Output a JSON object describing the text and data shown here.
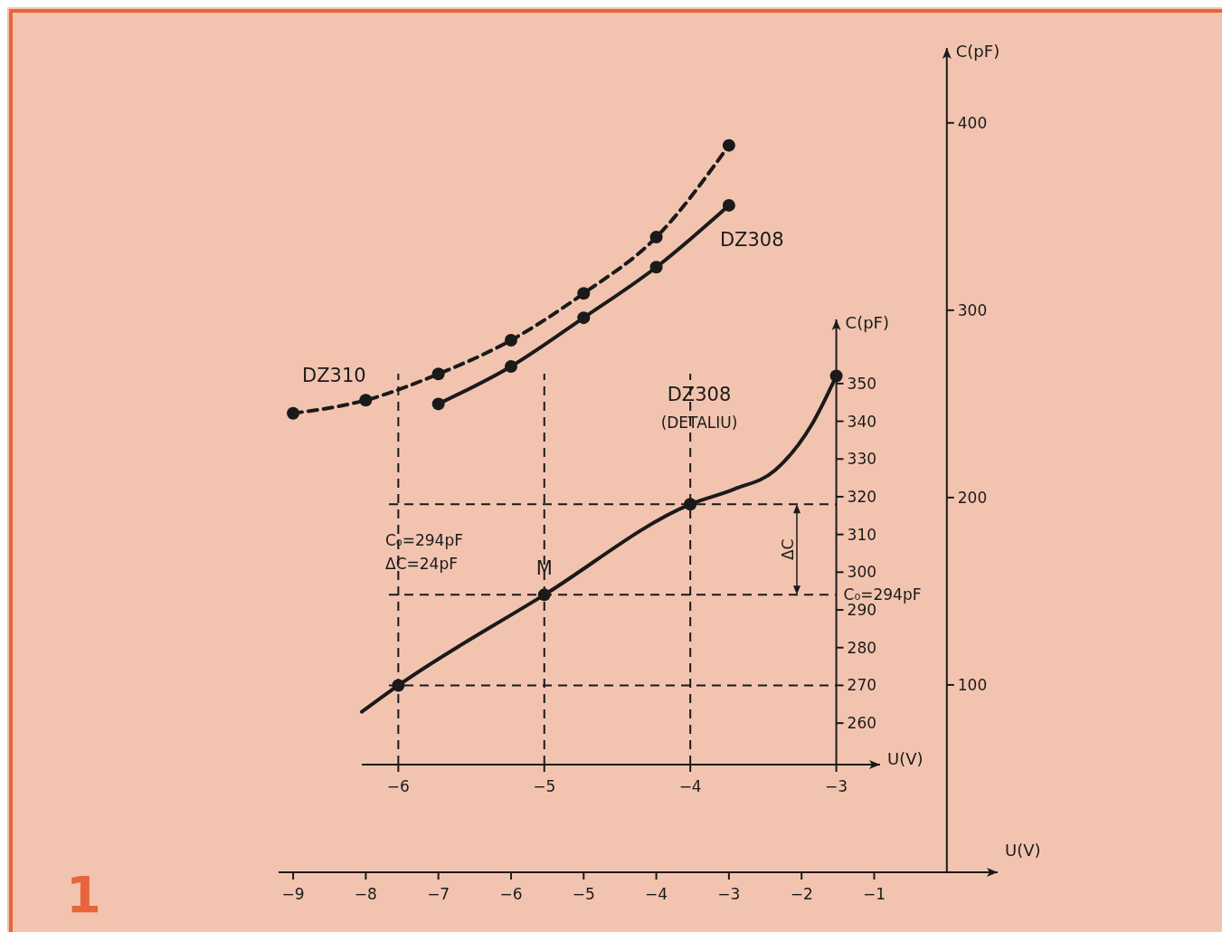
{
  "chart_data": [
    {
      "type": "line",
      "xlabel": "U(V)",
      "ylabel": "C(pF)",
      "xlim": [
        -9.2,
        0.7
      ],
      "ylim": [
        0,
        440
      ],
      "xticks": [
        -9,
        -8,
        -7,
        -6,
        -5,
        -4,
        -3,
        -2,
        -1
      ],
      "yticks": [
        100,
        200,
        300,
        400
      ],
      "marker": "circle",
      "x": [
        -9,
        -8,
        -7,
        -6,
        -5,
        -4,
        -3
      ],
      "series": [
        {
          "name": "DZ310",
          "color": "#1a1a1a",
          "line_style": "dashed",
          "values": [
            245,
            252,
            266,
            284,
            309,
            339,
            388
          ]
        },
        {
          "name": "DZ308",
          "color": "#1a1a1a",
          "line_style": "solid",
          "values": [
            null,
            null,
            250,
            270,
            296,
            323,
            356
          ]
        }
      ],
      "annotations": [
        "1"
      ]
    },
    {
      "type": "line",
      "title": "DZ308",
      "subtitle": "(DETALIU)",
      "xlabel": "U(V)",
      "ylabel": "C(pF)",
      "xlim": [
        -6.25,
        -2.7
      ],
      "ylim": [
        249,
        367
      ],
      "xticks": [
        -6,
        -5,
        -4,
        -3
      ],
      "yticks": [
        260,
        270,
        280,
        290,
        300,
        310,
        320,
        330,
        340,
        350
      ],
      "series": [
        {
          "color": "#1a1a1a",
          "line_style": "solid",
          "marker": "none",
          "x": [
            -6.25,
            -6,
            -5,
            -4,
            -3.7,
            -3.42,
            -3.17,
            -3
          ],
          "values": [
            263,
            270,
            294,
            318,
            322,
            327,
            339,
            352
          ]
        },
        {
          "type": "scatter",
          "color": "#1a1a1a",
          "marker": "circle",
          "x": [
            -6,
            -5,
            -4,
            -3
          ],
          "values": [
            270,
            294,
            318,
            352
          ]
        }
      ],
      "ref_lines": [
        {
          "axis": "y",
          "value": 270,
          "line_style": "dashed"
        },
        {
          "axis": "y",
          "value": 294,
          "label": "C₀=294pF",
          "line_style": "dashed"
        },
        {
          "axis": "y",
          "value": 318,
          "line_style": "dashed"
        },
        {
          "axis": "x",
          "value": -6,
          "line_style": "dashed"
        },
        {
          "axis": "x",
          "value": -5,
          "line_style": "dashed"
        },
        {
          "axis": "x",
          "value": -4,
          "line_style": "dashed"
        }
      ],
      "annotations": [
        {
          "text": "M",
          "x": -5,
          "y": 294
        },
        "ΔC",
        "C₀=294pF",
        "ΔC=24pF"
      ]
    }
  ]
}
